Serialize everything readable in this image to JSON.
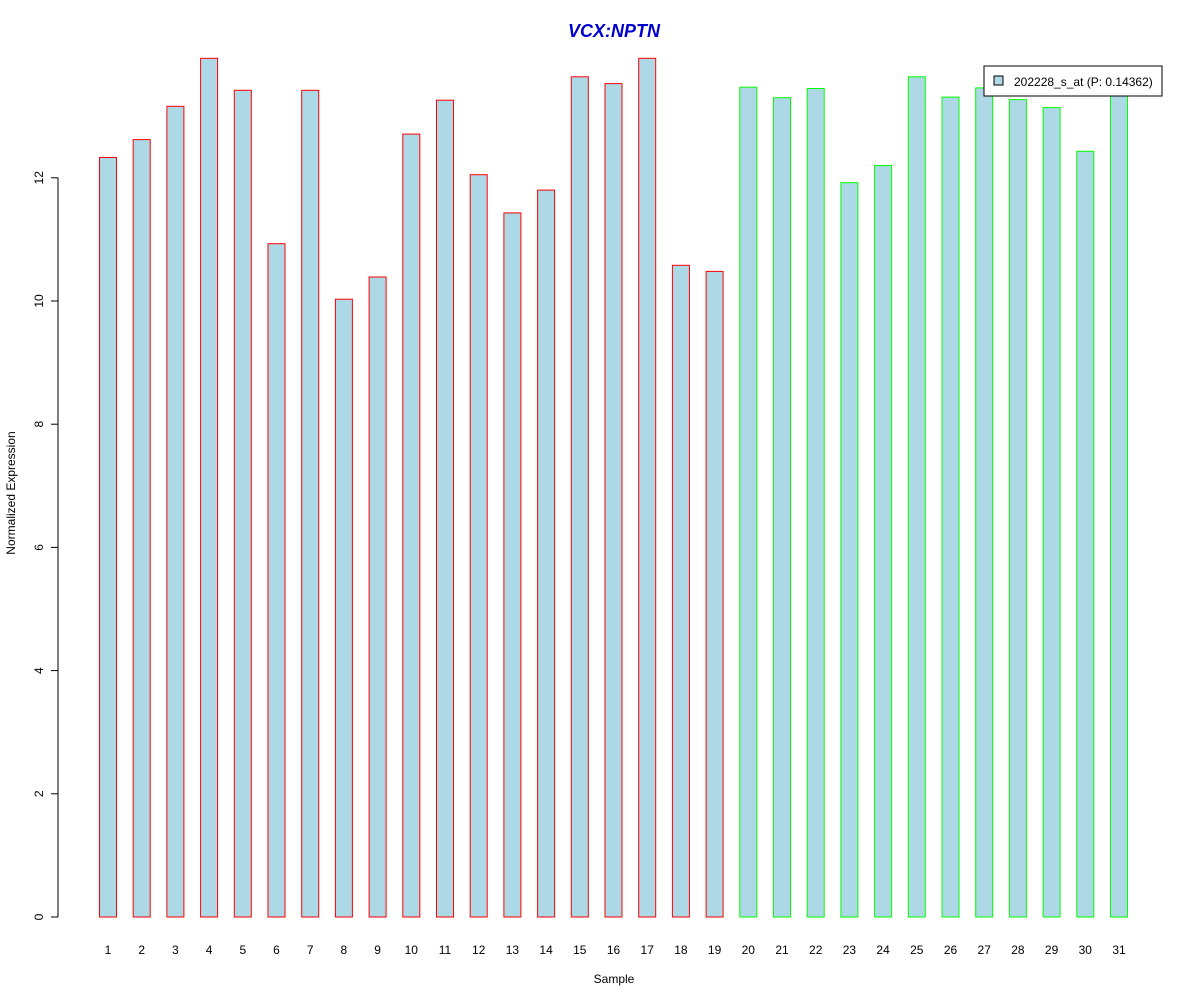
{
  "chart_data": {
    "type": "bar",
    "title": "VCX:NPTN",
    "xlabel": "Sample",
    "ylabel": "Normalized Expression",
    "categories": [
      "1",
      "2",
      "3",
      "4",
      "5",
      "6",
      "7",
      "8",
      "9",
      "10",
      "11",
      "12",
      "13",
      "14",
      "15",
      "16",
      "17",
      "18",
      "19",
      "20",
      "21",
      "22",
      "23",
      "24",
      "25",
      "26",
      "27",
      "28",
      "29",
      "30",
      "31"
    ],
    "series": [
      {
        "name": "202228_s_at (P: 0.14362)",
        "values": [
          12.33,
          12.62,
          13.16,
          13.94,
          13.42,
          10.93,
          13.42,
          10.03,
          10.39,
          12.71,
          13.26,
          12.05,
          11.43,
          11.8,
          13.64,
          13.53,
          13.94,
          10.58,
          10.48,
          13.47,
          13.3,
          13.45,
          11.92,
          12.2,
          13.64,
          13.31,
          13.46,
          13.27,
          13.14,
          12.43,
          13.47
        ]
      }
    ],
    "group_colors": [
      "#ff0000",
      "#ff0000",
      "#ff0000",
      "#ff0000",
      "#ff0000",
      "#ff0000",
      "#ff0000",
      "#ff0000",
      "#ff0000",
      "#ff0000",
      "#ff0000",
      "#ff0000",
      "#ff0000",
      "#ff0000",
      "#ff0000",
      "#ff0000",
      "#ff0000",
      "#ff0000",
      "#ff0000",
      "#00ff00",
      "#00ff00",
      "#00ff00",
      "#00ff00",
      "#00ff00",
      "#00ff00",
      "#00ff00",
      "#00ff00",
      "#00ff00",
      "#00ff00",
      "#00ff00",
      "#00ff00"
    ],
    "fill_color": "#add8e6",
    "title_color": "#0000cd",
    "yticks": [
      0,
      2,
      4,
      6,
      8,
      10,
      12
    ],
    "ylim": [
      0,
      14
    ],
    "grid": false,
    "legend_position": "top-right"
  }
}
